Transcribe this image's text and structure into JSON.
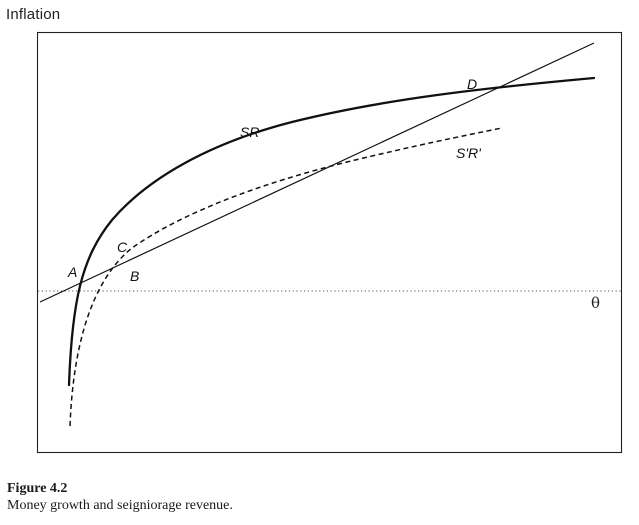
{
  "figure": {
    "y_axis_title": "Inflation",
    "x_axis_symbol": "θ",
    "curves": {
      "sr": "SR",
      "srprime": "S'R'"
    },
    "points": {
      "a": "A",
      "b": "B",
      "c": "C",
      "d": "D"
    }
  },
  "caption": {
    "title": "Figure 4.2",
    "text": "Money growth and seigniorage revenue."
  },
  "colors": {
    "ink": "#111111",
    "frame": "#222222",
    "dotted_axis": "#555555"
  }
}
